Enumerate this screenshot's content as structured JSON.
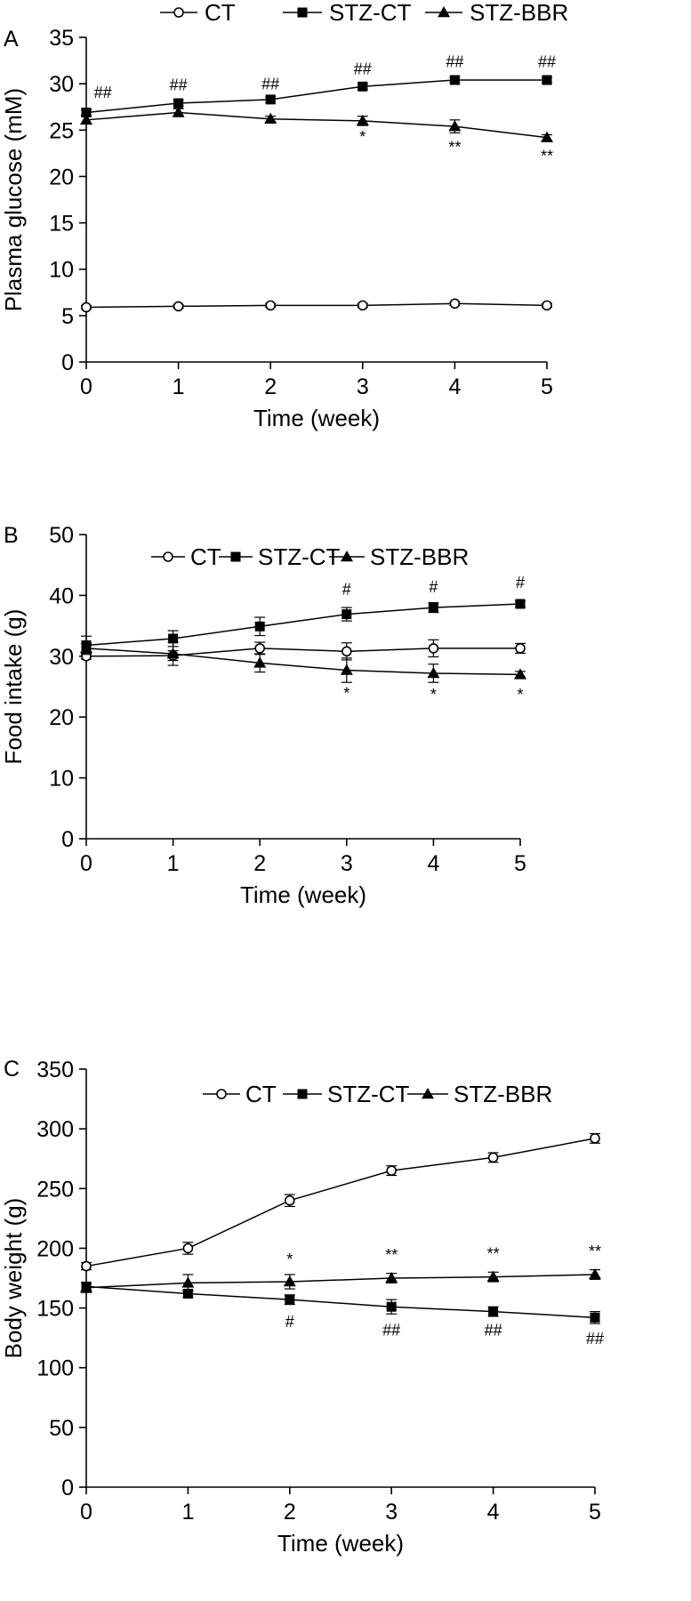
{
  "chart_data": [
    {
      "type": "line",
      "panel": "A",
      "xlabel": "Time (week)",
      "ylabel": "Plasma glucose (mM)",
      "x": [
        0,
        1,
        2,
        3,
        4,
        5
      ],
      "xlim": [
        0,
        5
      ],
      "ylim": [
        0,
        35
      ],
      "yticks": [
        0,
        5,
        10,
        15,
        20,
        25,
        30,
        35
      ],
      "grid": false,
      "legend": "top",
      "series": [
        {
          "name": "CT",
          "marker": "open-circle",
          "values": [
            5.9,
            6.0,
            6.1,
            6.1,
            6.3,
            6.1
          ],
          "errors": [
            0.2,
            0.2,
            0.2,
            0.2,
            0.2,
            0.2
          ]
        },
        {
          "name": "STZ-CT",
          "marker": "filled-square",
          "values": [
            26.9,
            27.9,
            28.3,
            29.7,
            30.4,
            30.4
          ],
          "errors": [
            0.3,
            0.3,
            0.3,
            0.3,
            0.3,
            0.3
          ]
        },
        {
          "name": "STZ-BBR",
          "marker": "filled-triangle",
          "values": [
            26.1,
            26.9,
            26.2,
            26.0,
            25.4,
            24.2
          ],
          "errors": [
            0.4,
            0.4,
            0.3,
            0.5,
            0.7,
            0.3
          ]
        }
      ],
      "annotations": [
        {
          "x": 0,
          "y": 28.5,
          "text": "##",
          "dx": 0.18
        },
        {
          "x": 1,
          "y": 29.3,
          "text": "##"
        },
        {
          "x": 2,
          "y": 29.4,
          "text": "##"
        },
        {
          "x": 3,
          "y": 31.0,
          "text": "##"
        },
        {
          "x": 4,
          "y": 31.8,
          "text": "##"
        },
        {
          "x": 5,
          "y": 31.8,
          "text": "##"
        },
        {
          "x": 3,
          "y": 23.7,
          "text": "*"
        },
        {
          "x": 4,
          "y": 22.6,
          "text": "**"
        },
        {
          "x": 5,
          "y": 21.6,
          "text": "**"
        }
      ]
    },
    {
      "type": "line",
      "panel": "B",
      "xlabel": "Time (week)",
      "ylabel": "Food intake (g)",
      "x": [
        0,
        1,
        2,
        3,
        4,
        5
      ],
      "xlim": [
        0,
        5
      ],
      "ylim": [
        0,
        50
      ],
      "yticks": [
        0,
        10,
        20,
        30,
        40,
        50
      ],
      "grid": false,
      "legend": "top",
      "series": [
        {
          "name": "CT",
          "marker": "open-circle",
          "values": [
            30.0,
            30.1,
            31.3,
            30.8,
            31.3,
            31.3
          ],
          "errors": [
            0.5,
            0.8,
            1.0,
            1.4,
            1.4,
            0.8
          ]
        },
        {
          "name": "STZ-CT",
          "marker": "filled-square",
          "values": [
            31.8,
            32.9,
            34.9,
            36.9,
            38.0,
            38.6
          ],
          "errors": [
            1.5,
            1.3,
            1.5,
            1.1,
            0.8,
            0.5
          ]
        },
        {
          "name": "STZ-BBR",
          "marker": "filled-triangle",
          "values": [
            31.3,
            30.4,
            28.9,
            27.7,
            27.2,
            27.0
          ],
          "errors": [
            0.8,
            1.9,
            1.5,
            2.0,
            1.5,
            0.5
          ]
        }
      ],
      "annotations": [
        {
          "x": 3,
          "y": 40.1,
          "text": "#"
        },
        {
          "x": 4,
          "y": 40.5,
          "text": "#"
        },
        {
          "x": 5,
          "y": 41.2,
          "text": "#"
        },
        {
          "x": 3,
          "y": 23.0,
          "text": "*"
        },
        {
          "x": 4,
          "y": 22.8,
          "text": "*"
        },
        {
          "x": 5,
          "y": 22.8,
          "text": "*"
        }
      ]
    },
    {
      "type": "line",
      "panel": "C",
      "xlabel": "Time (week)",
      "ylabel": "Body weight (g)",
      "x": [
        0,
        1,
        2,
        3,
        4,
        5
      ],
      "xlim": [
        0,
        5
      ],
      "ylim": [
        0,
        350
      ],
      "yticks": [
        0,
        50,
        100,
        150,
        200,
        250,
        300,
        350
      ],
      "grid": false,
      "legend": "top",
      "series": [
        {
          "name": "CT",
          "marker": "open-circle",
          "values": [
            185,
            200,
            240,
            265,
            276,
            292
          ],
          "errors": [
            3,
            5,
            5,
            4,
            4,
            4
          ]
        },
        {
          "name": "STZ-CT",
          "marker": "filled-square",
          "values": [
            168,
            162,
            157,
            151,
            147,
            142
          ],
          "errors": [
            3,
            3,
            4,
            6,
            4,
            5
          ]
        },
        {
          "name": "STZ-BBR",
          "marker": "filled-triangle",
          "values": [
            167,
            171,
            172,
            175,
            176,
            178
          ],
          "errors": [
            4,
            7,
            6,
            4,
            4,
            4
          ]
        }
      ],
      "annotations": [
        {
          "x": 2,
          "y": 186,
          "text": "*"
        },
        {
          "x": 3,
          "y": 190,
          "text": "**"
        },
        {
          "x": 4,
          "y": 191,
          "text": "**"
        },
        {
          "x": 5,
          "y": 193,
          "text": "**"
        },
        {
          "x": 2,
          "y": 134,
          "text": "#"
        },
        {
          "x": 3,
          "y": 127,
          "text": "##"
        },
        {
          "x": 4,
          "y": 127,
          "text": "##"
        },
        {
          "x": 5,
          "y": 120,
          "text": "##"
        }
      ]
    }
  ]
}
